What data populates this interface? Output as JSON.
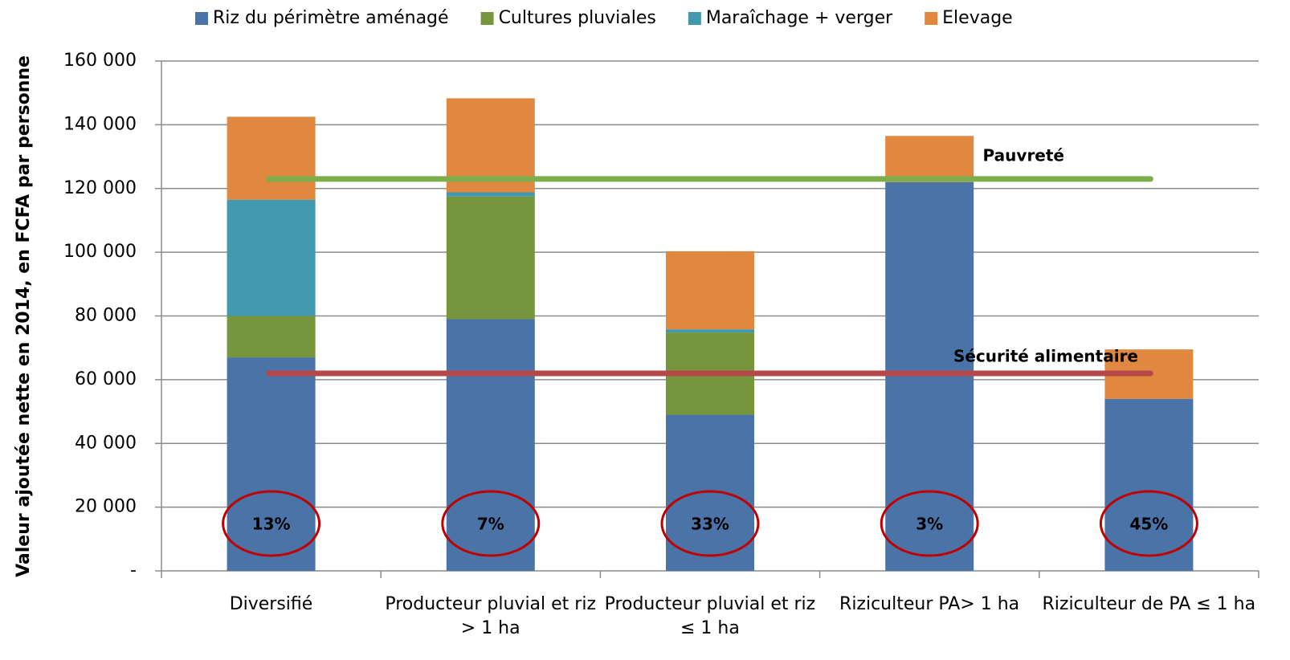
{
  "chart_data": {
    "type": "bar",
    "stacked": true,
    "y_label": "Valeur ajoutée nette en 2014, en FCFA par personne",
    "categories": [
      "Diversifié",
      "Producteur pluvial et riz > 1 ha",
      "Producteur pluvial et riz ≤ 1 ha",
      "Riziculteur PA> 1 ha",
      "Riziculteur de PA ≤ 1 ha"
    ],
    "series": [
      {
        "name": "Riz du périmètre aménagé",
        "color": "#4a74a8",
        "values": [
          67000,
          79000,
          49000,
          122000,
          54000
        ]
      },
      {
        "name": "Cultures pluviales",
        "color": "#77953d",
        "values": [
          13000,
          38500,
          25800,
          0,
          0
        ]
      },
      {
        "name": "Maraîchage + verger",
        "color": "#4198af",
        "values": [
          36500,
          1300,
          1000,
          0,
          0
        ]
      },
      {
        "name": "Elevage",
        "color": "#e0883f",
        "values": [
          26000,
          29500,
          24500,
          14500,
          15500
        ]
      }
    ],
    "share_labels": [
      "13%",
      "7%",
      "33%",
      "3%",
      "45%"
    ],
    "reference_lines": [
      {
        "label": "Pauvreté",
        "value": 123000,
        "color": "#7ead4c"
      },
      {
        "label": "Sécurité alimentaire",
        "value": 62000,
        "color": "#b5494a"
      }
    ],
    "ylim": [
      0,
      160000
    ],
    "yticks": [
      {
        "value": 0,
        "label": "-"
      },
      {
        "value": 20000,
        "label": "20 000"
      },
      {
        "value": 40000,
        "label": "40 000"
      },
      {
        "value": 60000,
        "label": "60 000"
      },
      {
        "value": 80000,
        "label": "80 000"
      },
      {
        "value": 100000,
        "label": "100 000"
      },
      {
        "value": 120000,
        "label": "120 000"
      },
      {
        "value": 140000,
        "label": "140 000"
      },
      {
        "value": 160000,
        "label": "160 000"
      }
    ],
    "grid": true
  }
}
